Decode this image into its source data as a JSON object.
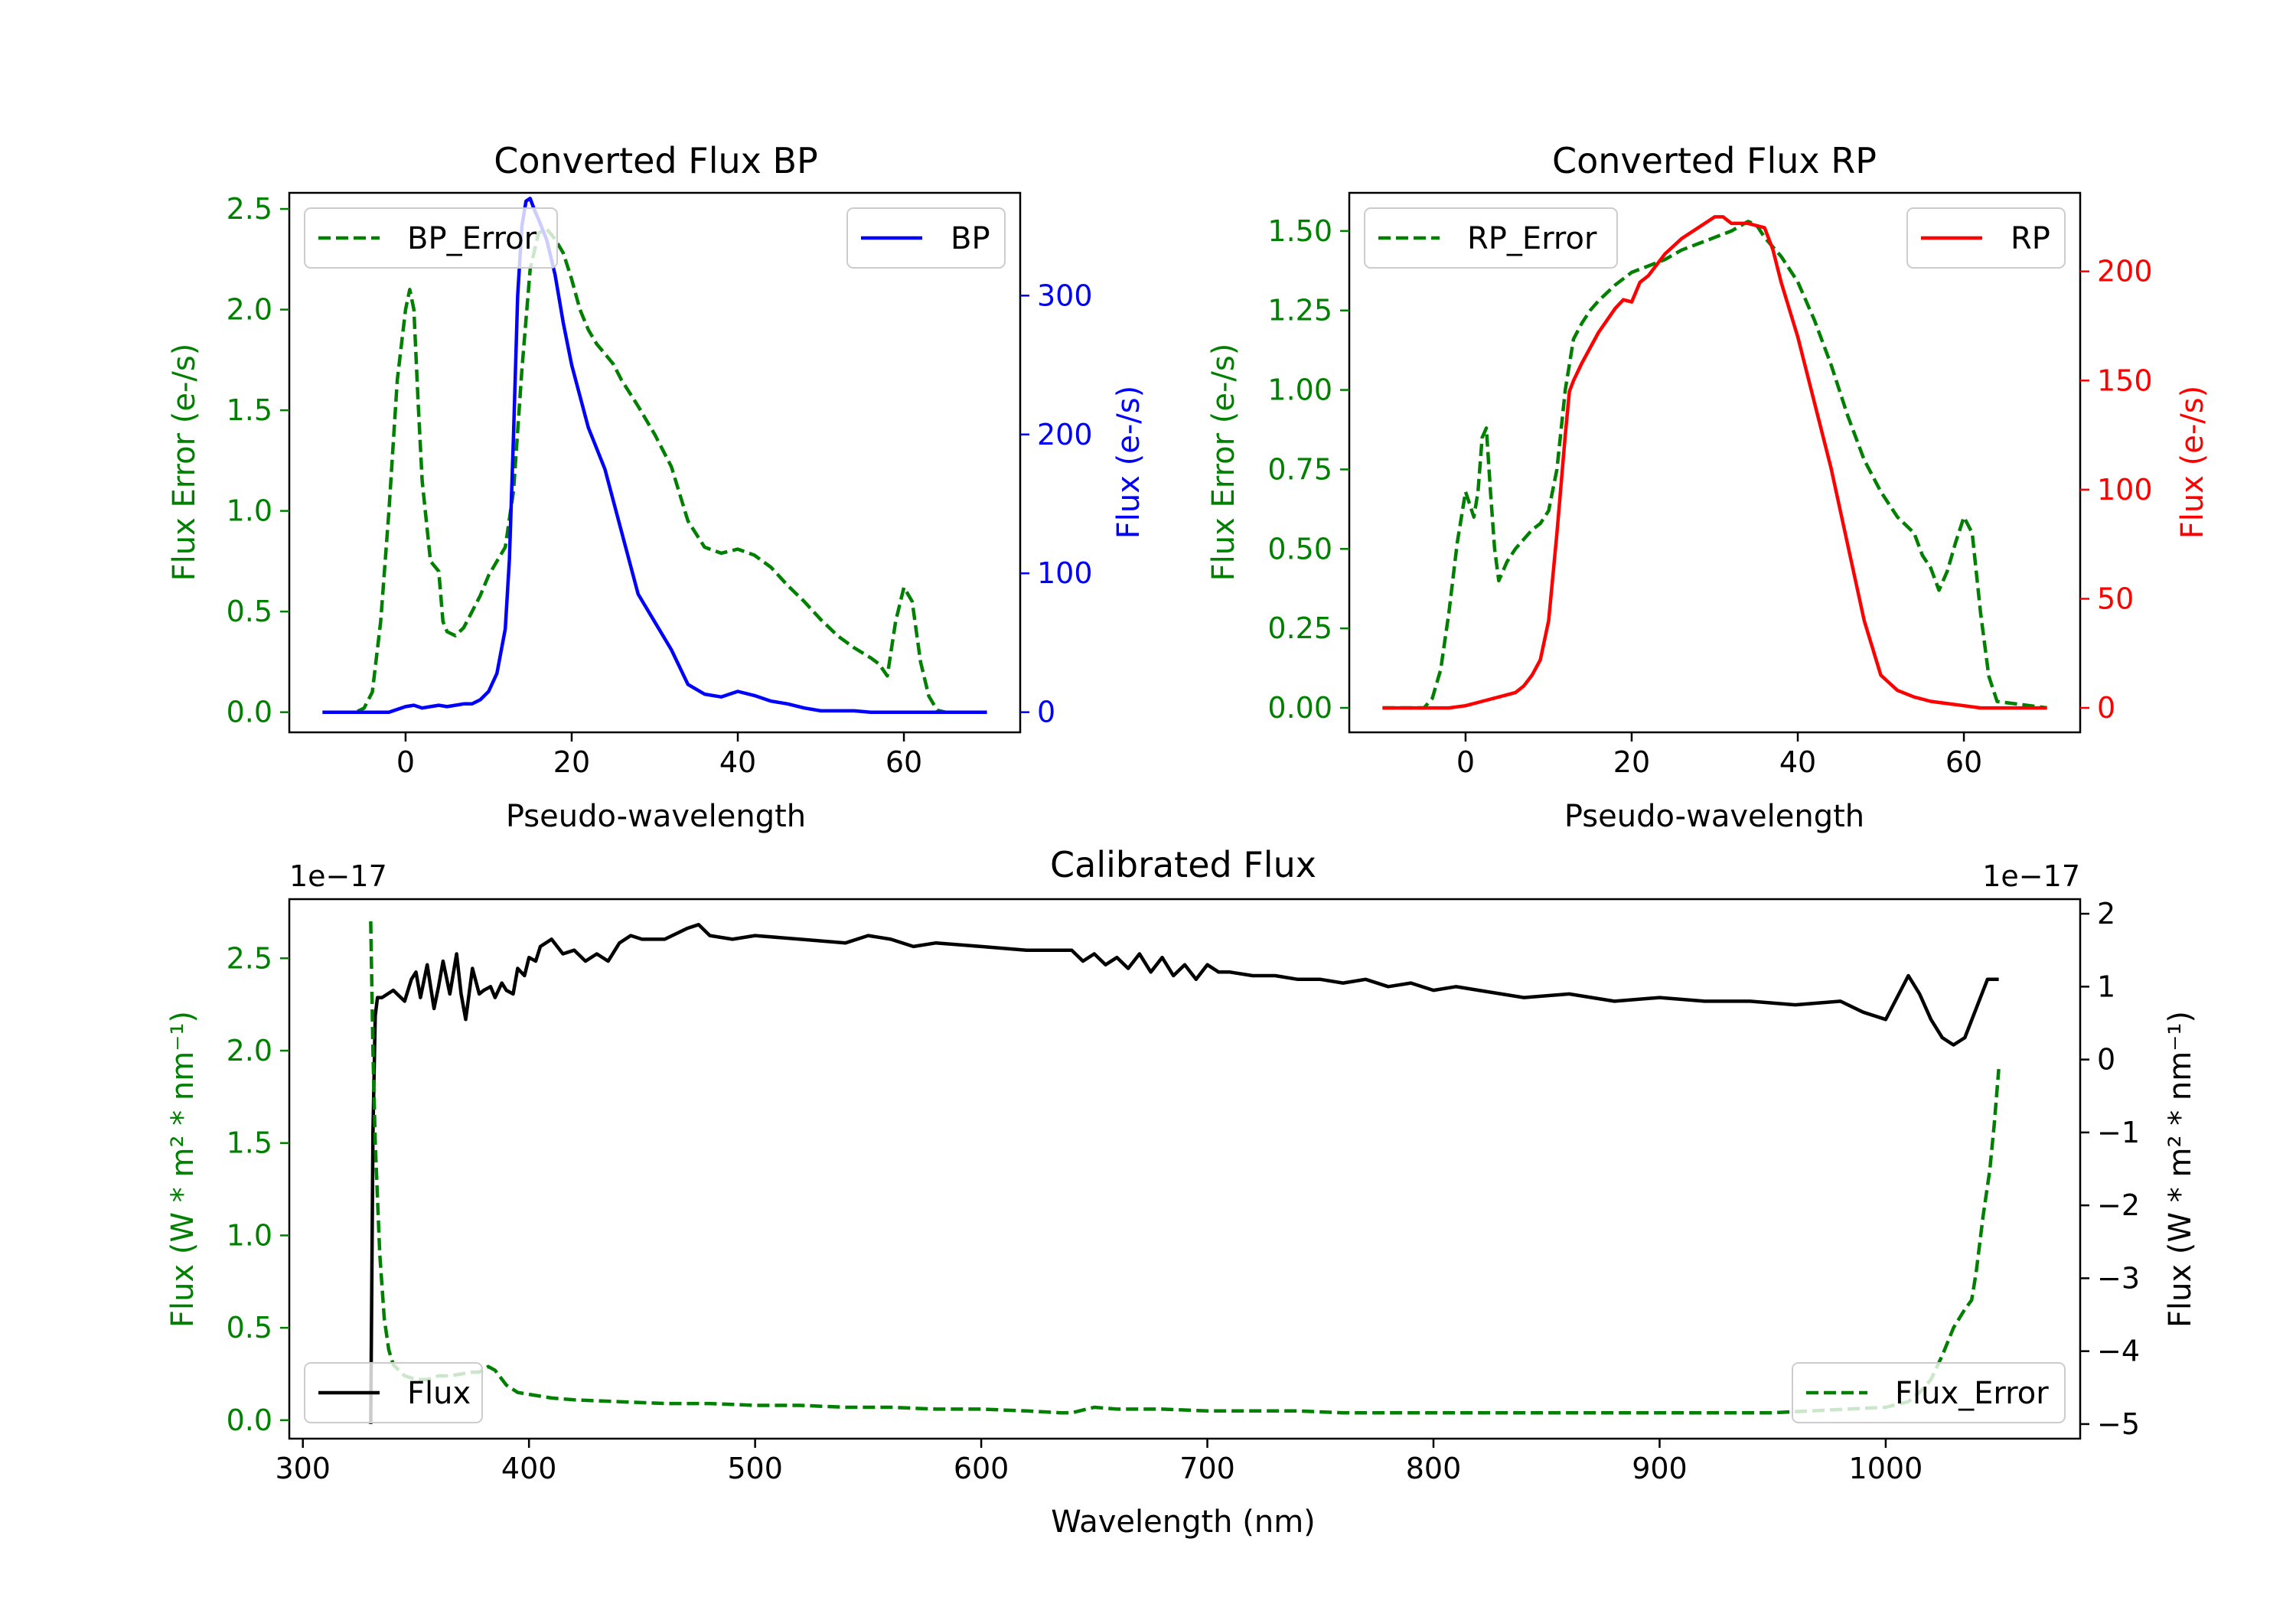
{
  "colors": {
    "bp": "#0000ff",
    "rp": "#ff0000",
    "error": "#008000",
    "flux": "#000000",
    "axis": "#000000"
  },
  "chart_data": [
    {
      "id": "bp",
      "type": "line",
      "title": "Converted Flux BP",
      "xlabel": "Pseudo-wavelength",
      "ylabel_left": "Flux Error (e-/s)",
      "ylabel_right": "Flux (e-/s)",
      "xlim": [
        -14,
        74
      ],
      "ylim_left": [
        -0.1,
        2.58
      ],
      "ylim_right": [
        -14.5,
        374
      ],
      "xticks": [
        0,
        20,
        40,
        60
      ],
      "yticks_left": [
        0.0,
        0.5,
        1.0,
        1.5,
        2.0,
        2.5
      ],
      "ytick_labels_left": [
        "0.0",
        "0.5",
        "1.0",
        "1.5",
        "2.0",
        "2.5"
      ],
      "yticks_right": [
        0,
        100,
        200,
        300
      ],
      "ytick_labels_right": [
        "0",
        "100",
        "200",
        "300"
      ],
      "legend_left": "BP_Error",
      "legend_right": "BP",
      "series": [
        {
          "name": "BP_Error",
          "axis": "left",
          "color": "error",
          "style": "dashed",
          "x": [
            -10,
            -6,
            -5,
            -4,
            -3,
            -2,
            -1,
            0,
            0.5,
            1,
            1.5,
            2,
            3,
            4,
            4.5,
            5,
            6,
            7,
            8,
            9,
            10,
            11,
            12,
            13,
            14,
            15,
            16,
            17,
            18,
            19,
            20,
            21,
            22,
            23,
            24,
            25,
            26,
            28,
            30,
            32,
            34,
            36,
            38,
            40,
            42,
            44,
            46,
            48,
            50,
            52,
            54,
            56,
            57,
            58,
            59,
            60,
            61,
            62,
            63,
            64,
            65,
            70
          ],
          "y": [
            0.0,
            0.0,
            0.02,
            0.1,
            0.45,
            1.0,
            1.65,
            2.0,
            2.1,
            2.0,
            1.55,
            1.15,
            0.75,
            0.7,
            0.45,
            0.4,
            0.38,
            0.42,
            0.5,
            0.58,
            0.68,
            0.75,
            0.82,
            1.1,
            1.7,
            2.2,
            2.38,
            2.4,
            2.35,
            2.28,
            2.15,
            2.0,
            1.9,
            1.83,
            1.78,
            1.73,
            1.65,
            1.52,
            1.38,
            1.22,
            0.95,
            0.82,
            0.79,
            0.81,
            0.78,
            0.72,
            0.63,
            0.55,
            0.46,
            0.38,
            0.32,
            0.27,
            0.24,
            0.18,
            0.45,
            0.62,
            0.55,
            0.25,
            0.08,
            0.01,
            0.0,
            0.0
          ]
        },
        {
          "name": "BP",
          "axis": "right",
          "color": "bp",
          "style": "solid",
          "x": [
            -10,
            -2,
            0,
            1,
            2,
            3,
            4,
            5,
            6,
            7,
            8,
            9,
            10,
            11,
            12,
            12.5,
            13,
            13.5,
            14,
            14.5,
            15,
            15.5,
            16,
            17,
            18,
            19,
            20,
            22,
            24,
            26,
            28,
            30,
            32,
            34,
            36,
            38,
            40,
            42,
            44,
            46,
            48,
            50,
            52,
            54,
            56,
            58,
            60,
            65,
            70
          ],
          "y": [
            0,
            0,
            4,
            5,
            3,
            4,
            5,
            4,
            5,
            6,
            6,
            9,
            15,
            28,
            60,
            110,
            200,
            300,
            350,
            368,
            370,
            362,
            355,
            340,
            315,
            280,
            250,
            205,
            175,
            130,
            85,
            65,
            45,
            20,
            13,
            11,
            15,
            12,
            8,
            6,
            3,
            1,
            1,
            1,
            0,
            0,
            0,
            0,
            0
          ]
        }
      ]
    },
    {
      "id": "rp",
      "type": "line",
      "title": "Converted Flux RP",
      "xlabel": "Pseudo-wavelength",
      "ylabel_left": "Flux Error (e-/s)",
      "ylabel_right": "Flux (e-/s)",
      "xlim": [
        -14,
        74
      ],
      "ylim_left": [
        -0.077,
        1.62
      ],
      "ylim_right": [
        -11.2,
        236
      ],
      "xticks": [
        0,
        20,
        40,
        60
      ],
      "yticks_left": [
        0.0,
        0.25,
        0.5,
        0.75,
        1.0,
        1.25,
        1.5
      ],
      "ytick_labels_left": [
        "0.00",
        "0.25",
        "0.50",
        "0.75",
        "1.00",
        "1.25",
        "1.50"
      ],
      "yticks_right": [
        0,
        50,
        100,
        150,
        200
      ],
      "ytick_labels_right": [
        "0",
        "50",
        "100",
        "150",
        "200"
      ],
      "legend_left": "RP_Error",
      "legend_right": "RP",
      "series": [
        {
          "name": "RP_Error",
          "axis": "left",
          "color": "error",
          "style": "dashed",
          "x": [
            -10,
            -5,
            -4,
            -3,
            -2,
            -1,
            0,
            0.5,
            1,
            1.5,
            2,
            2.5,
            3,
            3.5,
            4,
            5,
            6,
            7,
            8,
            9,
            10,
            11,
            12,
            13,
            14,
            15,
            16,
            18,
            20,
            22,
            24,
            26,
            28,
            30,
            32,
            34,
            35,
            36,
            38,
            40,
            42,
            44,
            46,
            48,
            50,
            52,
            54,
            55,
            56,
            57,
            58,
            59,
            60,
            61,
            62,
            63,
            64,
            70
          ],
          "y": [
            0.0,
            0.0,
            0.03,
            0.12,
            0.3,
            0.52,
            0.68,
            0.64,
            0.6,
            0.68,
            0.85,
            0.88,
            0.68,
            0.5,
            0.4,
            0.46,
            0.5,
            0.53,
            0.56,
            0.58,
            0.62,
            0.75,
            1.0,
            1.16,
            1.21,
            1.25,
            1.28,
            1.33,
            1.37,
            1.39,
            1.41,
            1.44,
            1.46,
            1.48,
            1.5,
            1.53,
            1.52,
            1.48,
            1.42,
            1.34,
            1.22,
            1.08,
            0.92,
            0.78,
            0.68,
            0.6,
            0.55,
            0.48,
            0.44,
            0.37,
            0.43,
            0.52,
            0.6,
            0.55,
            0.3,
            0.1,
            0.02,
            0.0
          ]
        },
        {
          "name": "RP",
          "axis": "right",
          "color": "rp",
          "style": "solid",
          "x": [
            -10,
            -2,
            0,
            2,
            4,
            6,
            7,
            8,
            9,
            10,
            11,
            12,
            12.5,
            13,
            14,
            16,
            18,
            19,
            20,
            21,
            22,
            24,
            26,
            28,
            30,
            31,
            32,
            34,
            35,
            36,
            37,
            38,
            40,
            42,
            44,
            46,
            48,
            50,
            52,
            54,
            56,
            58,
            60,
            62,
            65,
            70
          ],
          "y": [
            0,
            0,
            1,
            3,
            5,
            7,
            10,
            15,
            22,
            40,
            80,
            125,
            145,
            150,
            158,
            172,
            183,
            187,
            186,
            195,
            198,
            208,
            215,
            220,
            225,
            225,
            222,
            222,
            221,
            220,
            210,
            195,
            170,
            140,
            110,
            75,
            40,
            15,
            8,
            5,
            3,
            2,
            1,
            0,
            0,
            0
          ]
        }
      ]
    },
    {
      "id": "calibrated",
      "type": "line",
      "title": "Calibrated Flux",
      "xlabel": "Wavelength (nm)",
      "ylabel_left": "Flux (W * m² * nm⁻¹)",
      "ylabel_right": "Flux (W * m² * nm⁻¹)",
      "offset_left": "1e−17",
      "offset_right": "1e−17",
      "xlim": [
        294,
        1086
      ],
      "ylim_left": [
        -0.1,
        2.82
      ],
      "ylim_right": [
        -5.2,
        2.2
      ],
      "xticks": [
        300,
        400,
        500,
        600,
        700,
        800,
        900,
        1000
      ],
      "yticks_left": [
        0.0,
        0.5,
        1.0,
        1.5,
        2.0,
        2.5
      ],
      "ytick_labels_left": [
        "0.0",
        "0.5",
        "1.0",
        "1.5",
        "2.0",
        "2.5"
      ],
      "yticks_right": [
        -5,
        -4,
        -3,
        -2,
        -1,
        0,
        1,
        2
      ],
      "ytick_labels_right": [
        "−5",
        "−4",
        "−3",
        "−2",
        "−1",
        "0",
        "1",
        "2"
      ],
      "legend_left": "Flux",
      "legend_right": "Flux_Error",
      "series": [
        {
          "name": "Flux",
          "axis": "right",
          "color": "flux",
          "style": "solid",
          "x": [
            330,
            331,
            332,
            333,
            335,
            340,
            345,
            348,
            350,
            352,
            355,
            358,
            360,
            362,
            365,
            368,
            370,
            372,
            375,
            378,
            380,
            383,
            385,
            388,
            390,
            393,
            395,
            398,
            400,
            403,
            405,
            410,
            415,
            420,
            425,
            430,
            435,
            440,
            445,
            450,
            460,
            470,
            475,
            480,
            490,
            500,
            520,
            540,
            550,
            560,
            570,
            580,
            600,
            620,
            640,
            645,
            650,
            655,
            660,
            665,
            670,
            675,
            680,
            685,
            690,
            695,
            700,
            705,
            710,
            720,
            730,
            740,
            750,
            760,
            770,
            780,
            790,
            800,
            810,
            820,
            840,
            860,
            880,
            900,
            920,
            940,
            960,
            980,
            990,
            1000,
            1010,
            1015,
            1020,
            1025,
            1030,
            1035,
            1040,
            1045,
            1050
          ],
          "y": [
            -5.0,
            -1.0,
            0.6,
            0.85,
            0.85,
            0.95,
            0.8,
            1.1,
            1.2,
            0.85,
            1.3,
            0.7,
            1.0,
            1.35,
            0.9,
            1.45,
            0.9,
            0.55,
            1.25,
            0.9,
            0.95,
            1.0,
            0.85,
            1.05,
            0.95,
            0.9,
            1.25,
            1.15,
            1.4,
            1.35,
            1.55,
            1.65,
            1.45,
            1.5,
            1.35,
            1.45,
            1.35,
            1.6,
            1.7,
            1.65,
            1.65,
            1.8,
            1.85,
            1.7,
            1.65,
            1.7,
            1.65,
            1.6,
            1.7,
            1.65,
            1.55,
            1.6,
            1.55,
            1.5,
            1.5,
            1.35,
            1.45,
            1.3,
            1.4,
            1.25,
            1.45,
            1.2,
            1.4,
            1.15,
            1.3,
            1.1,
            1.3,
            1.2,
            1.2,
            1.15,
            1.15,
            1.1,
            1.1,
            1.05,
            1.1,
            1.0,
            1.05,
            0.95,
            1.0,
            0.95,
            0.85,
            0.9,
            0.8,
            0.85,
            0.8,
            0.8,
            0.75,
            0.8,
            0.65,
            0.55,
            1.15,
            0.9,
            0.55,
            0.3,
            0.2,
            0.3,
            0.7,
            1.1,
            1.1
          ]
        },
        {
          "name": "Flux_Error",
          "axis": "left",
          "color": "error",
          "style": "dashed",
          "x": [
            330,
            331,
            332,
            334,
            336,
            338,
            340,
            345,
            350,
            355,
            360,
            365,
            370,
            375,
            378,
            382,
            385,
            390,
            395,
            400,
            410,
            420,
            440,
            460,
            480,
            500,
            520,
            540,
            560,
            580,
            600,
            620,
            635,
            640,
            650,
            660,
            680,
            700,
            720,
            740,
            760,
            800,
            850,
            900,
            950,
            1000,
            1010,
            1015,
            1020,
            1025,
            1030,
            1035,
            1038,
            1040,
            1043,
            1046,
            1048,
            1050
          ],
          "y": [
            2.7,
            2.0,
            1.5,
            0.9,
            0.55,
            0.38,
            0.3,
            0.24,
            0.22,
            0.22,
            0.24,
            0.24,
            0.25,
            0.26,
            0.26,
            0.29,
            0.27,
            0.19,
            0.15,
            0.14,
            0.12,
            0.11,
            0.1,
            0.09,
            0.09,
            0.08,
            0.08,
            0.07,
            0.07,
            0.06,
            0.06,
            0.05,
            0.04,
            0.04,
            0.07,
            0.06,
            0.06,
            0.05,
            0.05,
            0.05,
            0.04,
            0.04,
            0.04,
            0.04,
            0.04,
            0.07,
            0.1,
            0.15,
            0.22,
            0.35,
            0.5,
            0.6,
            0.65,
            0.8,
            1.1,
            1.35,
            1.6,
            1.9
          ]
        }
      ]
    }
  ]
}
